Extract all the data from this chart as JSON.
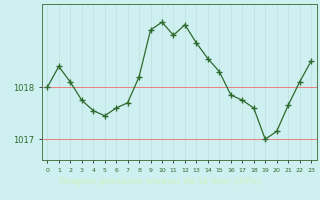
{
  "x": [
    0,
    1,
    2,
    3,
    4,
    5,
    6,
    7,
    8,
    9,
    10,
    11,
    12,
    13,
    14,
    15,
    16,
    17,
    18,
    19,
    20,
    21,
    22,
    23
  ],
  "y": [
    1018.0,
    1018.4,
    1018.1,
    1017.75,
    1017.55,
    1017.45,
    1017.6,
    1017.7,
    1018.2,
    1019.1,
    1019.25,
    1019.0,
    1019.2,
    1018.85,
    1018.55,
    1018.3,
    1017.85,
    1017.75,
    1017.6,
    1017.0,
    1017.15,
    1017.65,
    1018.1,
    1018.5
  ],
  "line_color": "#2d6a2d",
  "marker": "+",
  "marker_size": 4,
  "bg_color": "#cff0f0",
  "grid_color_v": "#c0dede",
  "grid_color_h": "#e88080",
  "tick_label_color": "#2d6a2d",
  "ylim": [
    1016.6,
    1019.6
  ],
  "yticks": [
    1017.0,
    1018.0
  ],
  "border_color": "#4a7a4a",
  "bottom_bar_color": "#2a4a2a",
  "bottom_bar_text_color": "#d0f0d0",
  "xlabel": "Graphe pression niveau de la mer (hPa)"
}
